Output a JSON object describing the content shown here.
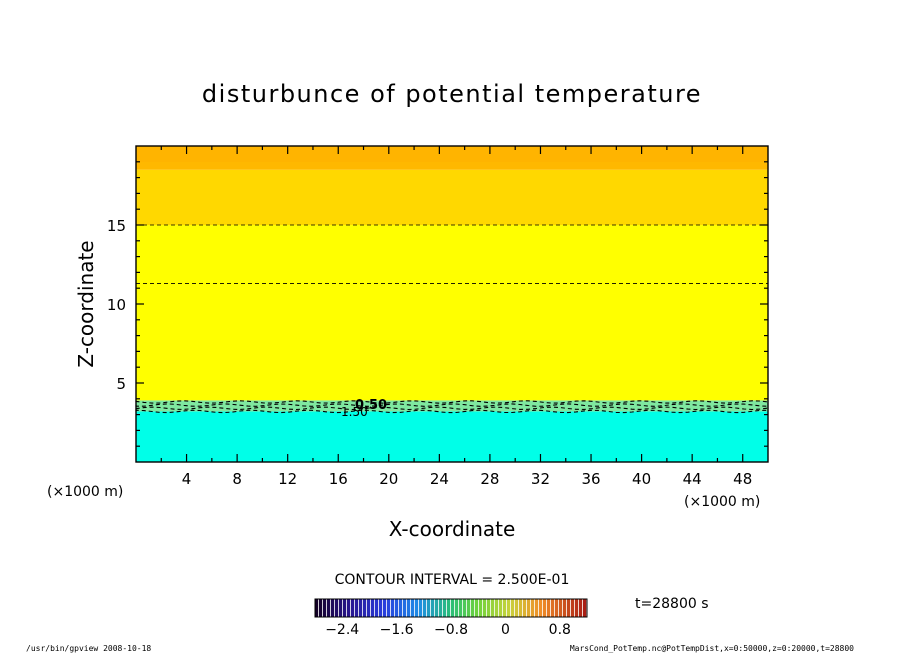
{
  "chart_data": {
    "type": "heatmap",
    "title": "disturbunce of potential temperature",
    "xlabel": "X-coordinate",
    "ylabel": "Z-coordinate",
    "x_unit_left": "(×1000 m)",
    "x_unit_right": "(×1000 m)",
    "xlim": [
      0,
      50
    ],
    "ylim": [
      0,
      20
    ],
    "x_ticks": [
      4,
      8,
      12,
      16,
      20,
      24,
      28,
      32,
      36,
      40,
      44,
      48
    ],
    "y_ticks": [
      5,
      10,
      15
    ],
    "contour_interval_label": "CONTOUR INTERVAL = 2.500E-01",
    "time_label": "t=28800 s",
    "contour_labels": [
      "0.50",
      "1.50"
    ],
    "colorbar": {
      "ticks": [
        -2.4,
        -1.6,
        -0.8,
        0,
        0.8
      ],
      "tick_labels": [
        "−2.4",
        "−1.6",
        "−0.8",
        "0",
        "0.8"
      ],
      "range": [
        -2.8,
        1.2
      ]
    },
    "field_bands": [
      {
        "z_from": 0,
        "z_to": 3.2,
        "color": "#00ffe8",
        "label": "cyan"
      },
      {
        "z_from": 3.2,
        "z_to": 3.9,
        "color": "#7fe8a0",
        "label": "transition"
      },
      {
        "z_from": 3.9,
        "z_to": 15.0,
        "color": "#ffff00",
        "label": "yellow"
      },
      {
        "z_from": 15.0,
        "z_to": 18.5,
        "color": "#ffd800",
        "label": "light-orange"
      },
      {
        "z_from": 18.5,
        "z_to": 20,
        "color": "#ffb800",
        "label": "orange"
      }
    ],
    "dashed_contour_z": [
      15.0,
      11.3,
      3.8,
      3.6,
      3.4,
      3.2
    ]
  },
  "footer": {
    "left": "/usr/bin/gpview   2008-10-18",
    "right": "MarsCond_PotTemp.nc@PotTempDist,x=0:50000,z=0:20000,t=28800"
  }
}
